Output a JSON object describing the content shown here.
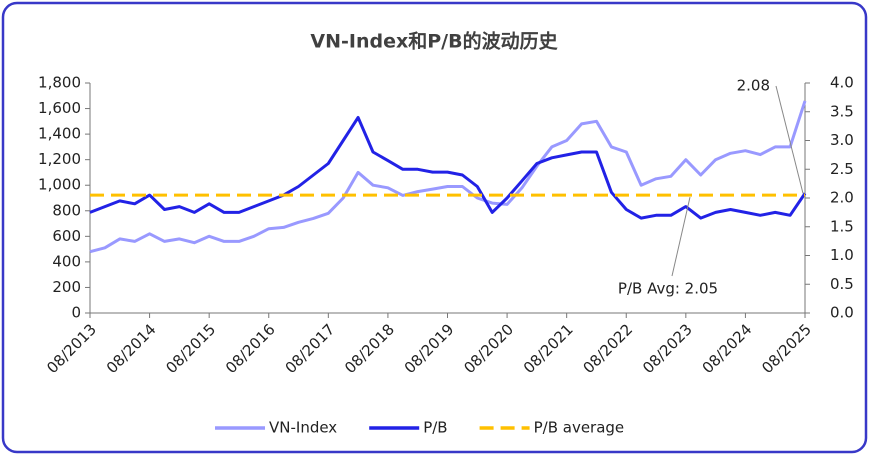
{
  "chart_data": {
    "type": "line",
    "title": "VN-Index和P/B的波动历史",
    "x": [
      "08/2013",
      "11/2013",
      "02/2014",
      "05/2014",
      "08/2014",
      "11/2014",
      "02/2015",
      "05/2015",
      "08/2015",
      "11/2015",
      "02/2016",
      "05/2016",
      "08/2016",
      "11/2016",
      "02/2017",
      "05/2017",
      "08/2017",
      "11/2017",
      "02/2018",
      "05/2018",
      "08/2018",
      "11/2018",
      "02/2019",
      "05/2019",
      "08/2019",
      "11/2019",
      "02/2020",
      "05/2020",
      "08/2020",
      "11/2020",
      "02/2021",
      "05/2021",
      "08/2021",
      "11/2021",
      "02/2022",
      "05/2022",
      "08/2022",
      "11/2022",
      "02/2023",
      "05/2023",
      "08/2023",
      "11/2023",
      "02/2024",
      "05/2024",
      "08/2024",
      "11/2024",
      "02/2025",
      "05/2025",
      "08/2025"
    ],
    "xticks": [
      "08/2013",
      "08/2014",
      "08/2015",
      "08/2016",
      "08/2017",
      "08/2018",
      "08/2019",
      "08/2020",
      "08/2021",
      "08/2022",
      "08/2023",
      "08/2024",
      "08/2025"
    ],
    "series": [
      {
        "name": "VN-Index",
        "color": "#9999ff",
        "axis": "y",
        "values": [
          480,
          510,
          580,
          560,
          620,
          560,
          580,
          550,
          600,
          560,
          560,
          600,
          660,
          670,
          710,
          740,
          780,
          900,
          1100,
          1000,
          980,
          920,
          950,
          970,
          990,
          990,
          900,
          860,
          850,
          980,
          1150,
          1300,
          1350,
          1480,
          1500,
          1300,
          1260,
          1000,
          1050,
          1070,
          1200,
          1080,
          1200,
          1250,
          1270,
          1240,
          1300,
          1300,
          1660
        ]
      },
      {
        "name": "P/B",
        "color": "#2222e6",
        "axis": "y2",
        "values": [
          1.75,
          1.85,
          1.95,
          1.9,
          2.05,
          1.8,
          1.85,
          1.75,
          1.9,
          1.75,
          1.75,
          1.85,
          1.95,
          2.05,
          2.2,
          2.4,
          2.6,
          3.0,
          3.4,
          2.8,
          2.65,
          2.5,
          2.5,
          2.45,
          2.45,
          2.4,
          2.2,
          1.75,
          2.0,
          2.3,
          2.6,
          2.7,
          2.75,
          2.8,
          2.8,
          2.1,
          1.8,
          1.65,
          1.7,
          1.7,
          1.85,
          1.65,
          1.75,
          1.8,
          1.75,
          1.7,
          1.75,
          1.7,
          2.08
        ]
      },
      {
        "name": "P/B average",
        "color": "#ffc000",
        "axis": "y2",
        "dashed": true,
        "value": 2.05
      }
    ],
    "ylim": [
      0,
      1800
    ],
    "yticks": [
      0,
      200,
      400,
      600,
      800,
      {
        "value": 1000,
        "label": "1,000"
      },
      {
        "value": 1200,
        "label": "1,200"
      },
      {
        "value": 1400,
        "label": "1,400"
      },
      {
        "value": 1600,
        "label": "1,600"
      },
      {
        "value": 1800,
        "label": "1,800"
      }
    ],
    "y2lim": [
      0,
      4
    ],
    "y2ticks": [
      {
        "value": 0,
        "label": "0.0"
      },
      0.5,
      {
        "value": 1,
        "label": "1.0"
      },
      1.5,
      {
        "value": 2,
        "label": "2.0"
      },
      2.5,
      {
        "value": 3,
        "label": "3.0"
      },
      3.5,
      {
        "value": 4,
        "label": "4.0"
      }
    ],
    "annotations": [
      "2.08",
      "P/B Avg: 2.05"
    ],
    "legend": "bottom"
  }
}
